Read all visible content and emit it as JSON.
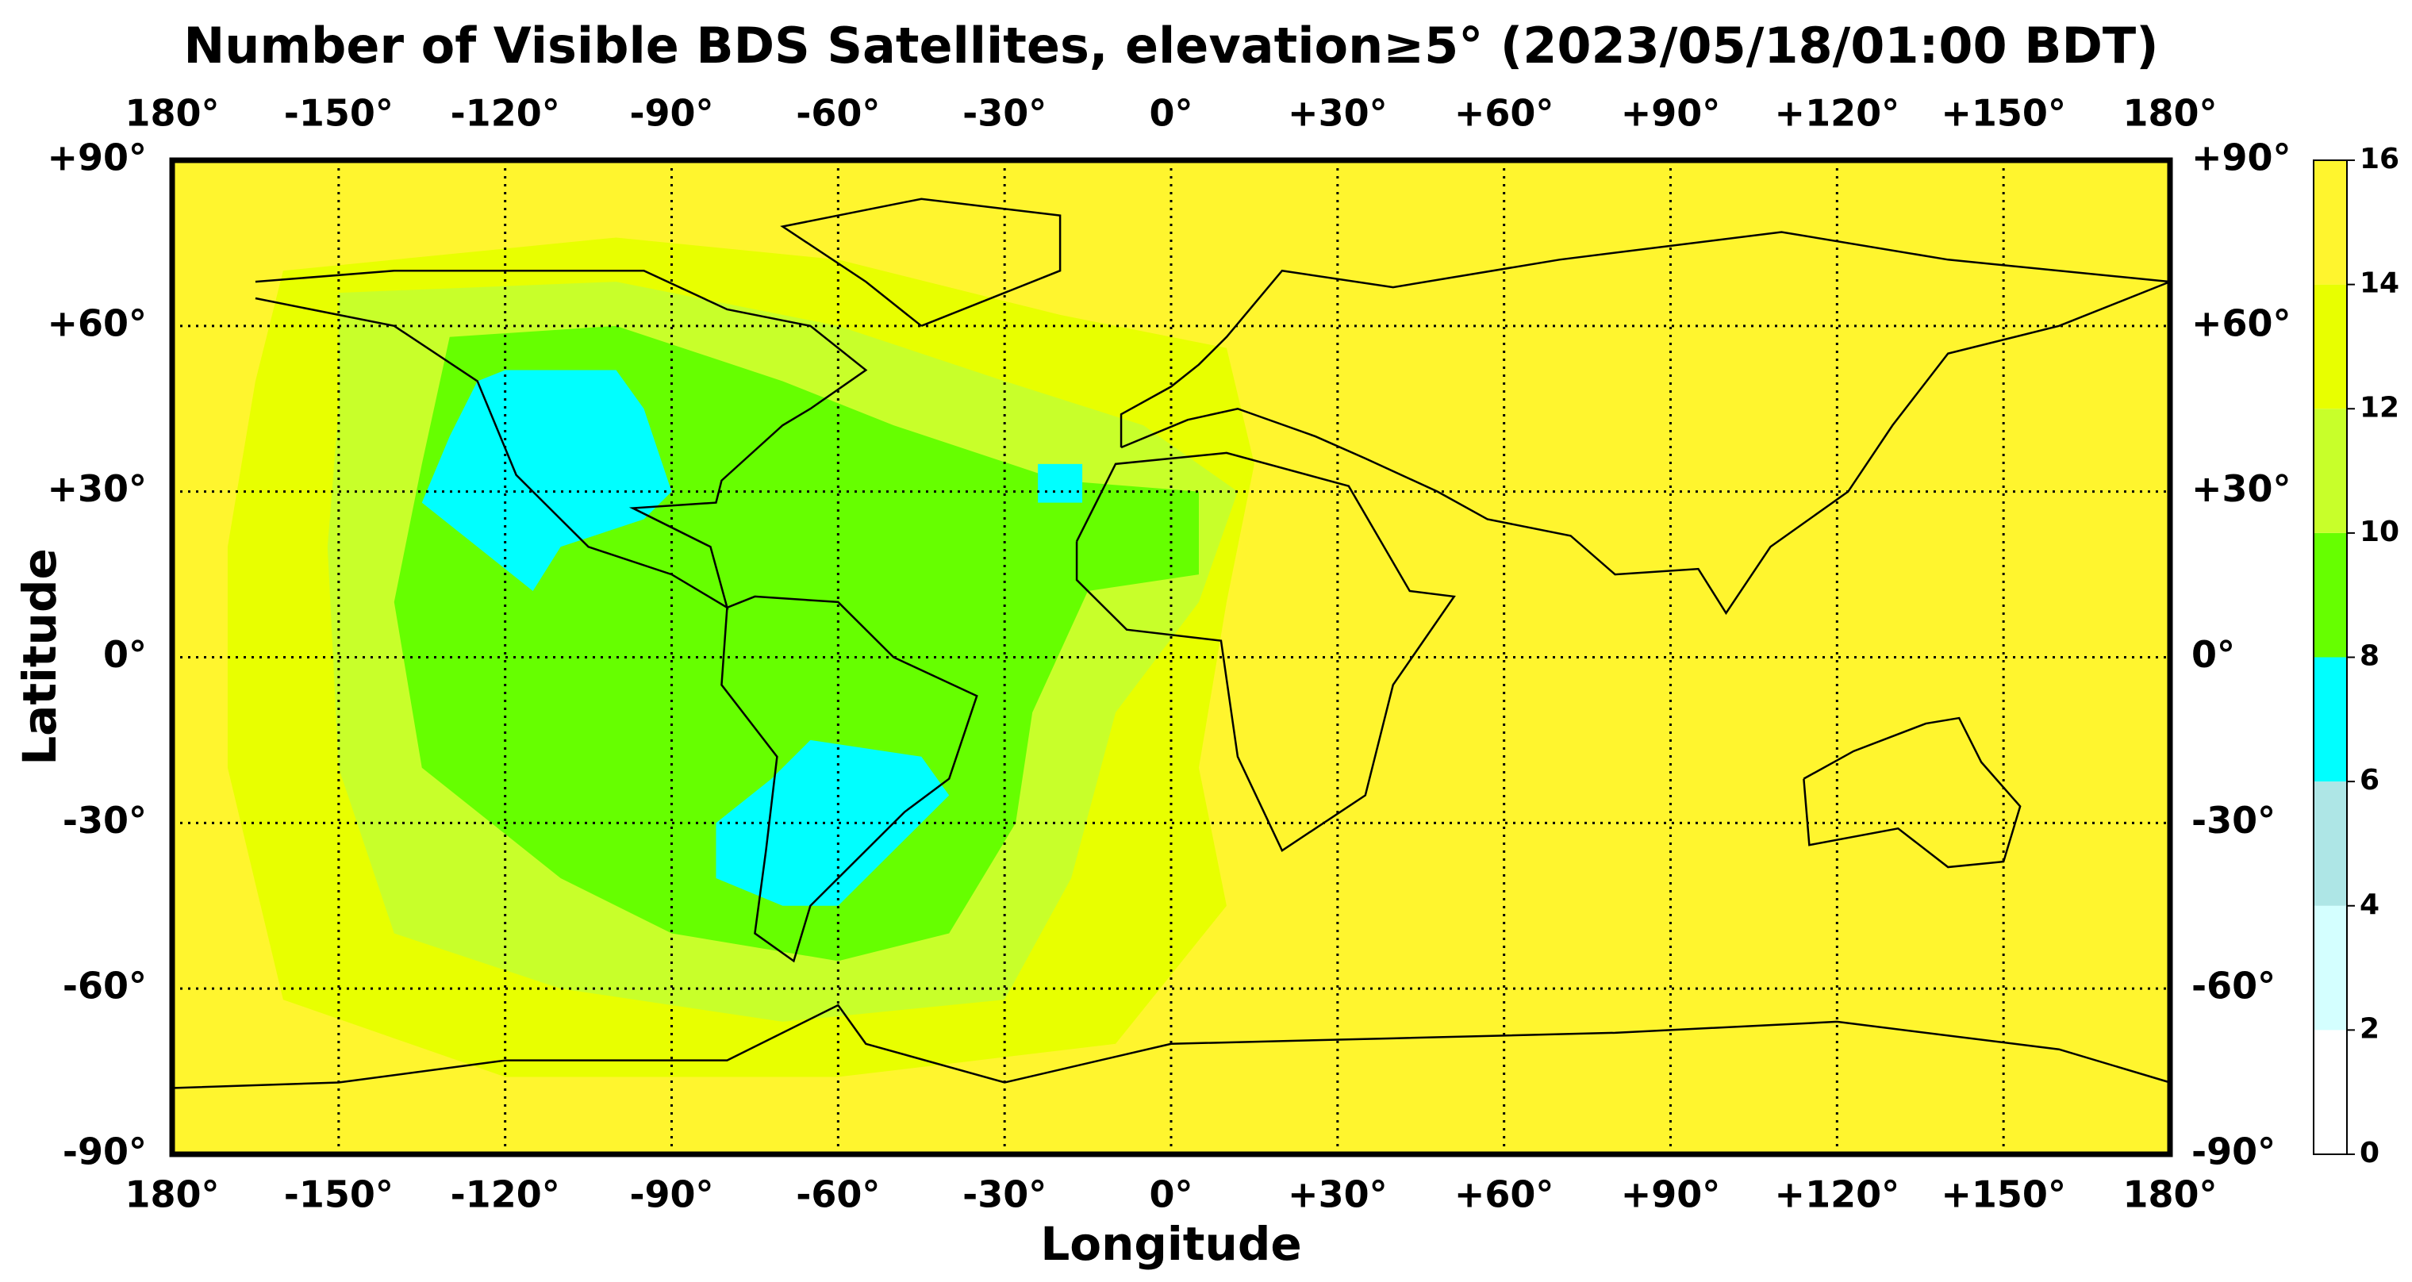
{
  "chart_data": {
    "type": "map",
    "title": "Number of Visible BDS Satellites, elevation≥5° (2023/05/18/01:00 BDT)",
    "xlabel": "Longitude",
    "ylabel": "Latitude",
    "xlim": [
      -180,
      180
    ],
    "xticks": [
      {
        "value": -180,
        "label": "180°"
      },
      {
        "value": -150,
        "label": "-150°"
      },
      {
        "value": -120,
        "label": "-120°"
      },
      {
        "value": -90,
        "label": "-90°"
      },
      {
        "value": -60,
        "label": "-60°"
      },
      {
        "value": -30,
        "label": "-30°"
      },
      {
        "value": 0,
        "label": "0°"
      },
      {
        "value": 30,
        "label": "+30°"
      },
      {
        "value": 60,
        "label": "+60°"
      },
      {
        "value": 90,
        "label": "+90°"
      },
      {
        "value": 120,
        "label": "+120°"
      },
      {
        "value": 150,
        "label": "+150°"
      },
      {
        "value": 180,
        "label": "180°"
      }
    ],
    "ylim": [
      -90,
      90
    ],
    "yticks": [
      {
        "value": -90,
        "label": "-90°"
      },
      {
        "value": -60,
        "label": "-60°"
      },
      {
        "value": -30,
        "label": "-30°"
      },
      {
        "value": 0,
        "label": "0°"
      },
      {
        "value": 30,
        "label": "+30°"
      },
      {
        "value": 60,
        "label": "+60°"
      },
      {
        "value": 90,
        "label": "+90°"
      }
    ],
    "grid": true,
    "colorbar": {
      "levels": [
        0,
        2,
        4,
        6,
        8,
        10,
        12,
        14,
        16
      ],
      "colors": [
        "#ffffff",
        "#d4ffff",
        "#aee6e6",
        "#00ffff",
        "#66ff00",
        "#c8ff2a",
        "#e8ff00",
        "#fff52e"
      ]
    }
  }
}
